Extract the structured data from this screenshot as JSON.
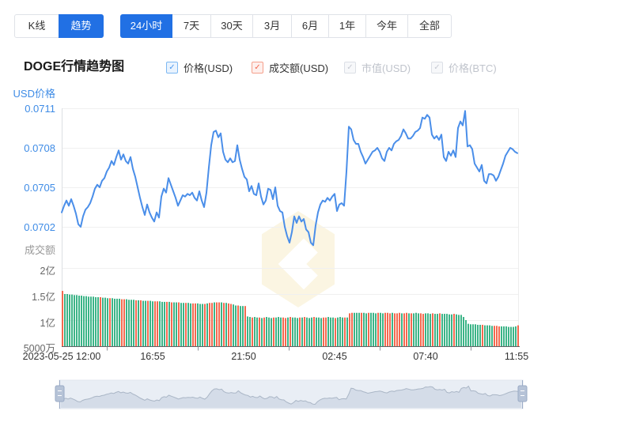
{
  "toolbar": {
    "chart_type_tabs": [
      {
        "label": "K线",
        "active": false
      },
      {
        "label": "趋势",
        "active": true
      }
    ],
    "range_tabs": [
      {
        "label": "24小时",
        "active": true
      },
      {
        "label": "7天",
        "active": false
      },
      {
        "label": "30天",
        "active": false
      },
      {
        "label": "3月",
        "active": false
      },
      {
        "label": "6月",
        "active": false
      },
      {
        "label": "1年",
        "active": false
      },
      {
        "label": "今年",
        "active": false
      },
      {
        "label": "全部",
        "active": false
      }
    ],
    "active_color": "#2170e4"
  },
  "header": {
    "title": "DOGE行情趋势图",
    "legend": [
      {
        "label": "价格(USD)",
        "checked": true,
        "color": "#4a8ee9"
      },
      {
        "label": "成交额(USD)",
        "checked": true,
        "color": "#f2664e"
      },
      {
        "label": "市值(USD)",
        "checked": false,
        "color": "#c0c4cc"
      },
      {
        "label": "价格(BTC)",
        "checked": false,
        "color": "#c0c4cc"
      }
    ]
  },
  "chart_data": {
    "type": "line",
    "title": "DOGE行情趋势图",
    "x_labels": [
      "2023-05-25 12:00",
      "16:55",
      "21:50",
      "02:45",
      "07:40",
      "11:55"
    ],
    "price_axis": {
      "label": "USD价格",
      "ticks": [
        "0.0711",
        "0.0708",
        "0.0705",
        "0.0702"
      ],
      "min": 0.0699,
      "max": 0.0711,
      "grid": true
    },
    "volume_axis": {
      "label": "成交额",
      "ticks": [
        "2亿",
        "1.5亿",
        "1亿",
        "5000万"
      ],
      "min": 0.5,
      "max": 2.25,
      "unit": "亿"
    },
    "legend_position": "top",
    "series": [
      {
        "name": "价格(USD)",
        "type": "line",
        "color": "#4a8ee9",
        "values": [
          0.07031,
          0.07036,
          0.0704,
          0.07036,
          0.07041,
          0.07036,
          0.0703,
          0.07022,
          0.0702,
          0.07028,
          0.07033,
          0.07035,
          0.07038,
          0.07043,
          0.07049,
          0.07052,
          0.0705,
          0.07055,
          0.07057,
          0.07062,
          0.07065,
          0.0707,
          0.07067,
          0.07073,
          0.07078,
          0.07071,
          0.07075,
          0.0707,
          0.07068,
          0.07073,
          0.07064,
          0.07058,
          0.0705,
          0.07042,
          0.07035,
          0.07029,
          0.07037,
          0.07031,
          0.07027,
          0.07024,
          0.07031,
          0.07027,
          0.07043,
          0.07049,
          0.07046,
          0.07057,
          0.07052,
          0.07047,
          0.07042,
          0.07036,
          0.0704,
          0.07044,
          0.07043,
          0.07045,
          0.07044,
          0.07046,
          0.07042,
          0.0704,
          0.07047,
          0.0704,
          0.07035,
          0.07046,
          0.07065,
          0.07082,
          0.07092,
          0.07093,
          0.07088,
          0.07091,
          0.07077,
          0.07071,
          0.07069,
          0.07072,
          0.07069,
          0.0707,
          0.07082,
          0.07071,
          0.07064,
          0.07058,
          0.07056,
          0.07047,
          0.07051,
          0.07045,
          0.07044,
          0.07053,
          0.07043,
          0.07037,
          0.0704,
          0.07049,
          0.07048,
          0.07041,
          0.0705,
          0.07036,
          0.07032,
          0.07031,
          0.0702,
          0.07013,
          0.07008,
          0.07016,
          0.07028,
          0.07023,
          0.07028,
          0.07024,
          0.07026,
          0.07018,
          0.07016,
          0.07008,
          0.07006,
          0.07021,
          0.07031,
          0.07037,
          0.0704,
          0.07039,
          0.07042,
          0.0704,
          0.07043,
          0.07045,
          0.07032,
          0.07037,
          0.07038,
          0.07036,
          0.07062,
          0.07096,
          0.07094,
          0.07086,
          0.07083,
          0.07083,
          0.07077,
          0.07073,
          0.07068,
          0.07071,
          0.07074,
          0.07077,
          0.07078,
          0.0708,
          0.07077,
          0.07072,
          0.0707,
          0.07077,
          0.0708,
          0.07078,
          0.07083,
          0.07085,
          0.07086,
          0.07089,
          0.07094,
          0.07091,
          0.07087,
          0.07087,
          0.07089,
          0.07092,
          0.07093,
          0.07095,
          0.07103,
          0.07102,
          0.07105,
          0.07103,
          0.0709,
          0.07087,
          0.07089,
          0.07086,
          0.0709,
          0.07073,
          0.0707,
          0.07077,
          0.07074,
          0.07078,
          0.07073,
          0.07095,
          0.071,
          0.07097,
          0.07108,
          0.07081,
          0.07082,
          0.07079,
          0.07068,
          0.07065,
          0.07062,
          0.07067,
          0.07055,
          0.07053,
          0.0706,
          0.0706,
          0.07059,
          0.07055,
          0.07058,
          0.07063,
          0.07068,
          0.07074,
          0.07077,
          0.0708,
          0.07079,
          0.07077,
          0.07076
        ]
      },
      {
        "name": "成交额(USD)",
        "type": "bar",
        "unit": "亿",
        "color_up": "#3cb487",
        "color_down": "#f4694f",
        "values": [
          1.56,
          1.5,
          1.5,
          1.49,
          1.49,
          1.48,
          1.48,
          1.47,
          1.47,
          1.46,
          1.46,
          1.45,
          1.45,
          1.45,
          1.44,
          1.44,
          1.44,
          1.43,
          1.43,
          1.42,
          1.42,
          1.42,
          1.41,
          1.41,
          1.41,
          1.4,
          1.4,
          1.4,
          1.39,
          1.39,
          1.39,
          1.38,
          1.38,
          1.38,
          1.37,
          1.37,
          1.37,
          1.37,
          1.36,
          1.36,
          1.36,
          1.36,
          1.35,
          1.35,
          1.35,
          1.35,
          1.34,
          1.34,
          1.34,
          1.34,
          1.33,
          1.33,
          1.33,
          1.33,
          1.32,
          1.32,
          1.32,
          1.32,
          1.31,
          1.31,
          1.31,
          1.32,
          1.33,
          1.33,
          1.34,
          1.34,
          1.34,
          1.34,
          1.33,
          1.33,
          1.32,
          1.31,
          1.3,
          1.28,
          1.28,
          1.27,
          1.27,
          1.27,
          1.07,
          1.06,
          1.05,
          1.06,
          1.05,
          1.05,
          1.04,
          1.05,
          1.06,
          1.05,
          1.04,
          1.05,
          1.05,
          1.06,
          1.05,
          1.05,
          1.04,
          1.05,
          1.06,
          1.05,
          1.05,
          1.04,
          1.05,
          1.05,
          1.06,
          1.05,
          1.04,
          1.05,
          1.06,
          1.05,
          1.05,
          1.04,
          1.05,
          1.05,
          1.06,
          1.05,
          1.05,
          1.04,
          1.05,
          1.06,
          1.05,
          1.05,
          1.05,
          1.13,
          1.14,
          1.14,
          1.14,
          1.14,
          1.14,
          1.14,
          1.13,
          1.14,
          1.14,
          1.14,
          1.13,
          1.14,
          1.14,
          1.13,
          1.14,
          1.14,
          1.13,
          1.14,
          1.13,
          1.13,
          1.14,
          1.13,
          1.13,
          1.14,
          1.13,
          1.13,
          1.13,
          1.14,
          1.13,
          1.13,
          1.12,
          1.13,
          1.13,
          1.12,
          1.13,
          1.12,
          1.12,
          1.13,
          1.12,
          1.12,
          1.12,
          1.11,
          1.11,
          1.12,
          1.11,
          1.1,
          1.1,
          1.06,
          1.0,
          0.93,
          0.92,
          0.92,
          0.92,
          0.91,
          0.91,
          0.91,
          0.9,
          0.9,
          0.9,
          0.89,
          0.89,
          0.89,
          0.88,
          0.88,
          0.88,
          0.88,
          0.87,
          0.87,
          0.87,
          0.88,
          0.9
        ],
        "colors": "rgggggggggggggggrgggrggggrrggggrgrggrggrrgggrgrggrggrggrrgggrgrrgrrgrgrrggrggrggrggrgrgggrgggrrgrgggrgrgggrgggrrgggrgggrgrrgggrggrgggrggrrrgrrrgrrgrgggrrgggrggrgggggrgggggggggggrggggrrrgggggggr"
      }
    ]
  }
}
